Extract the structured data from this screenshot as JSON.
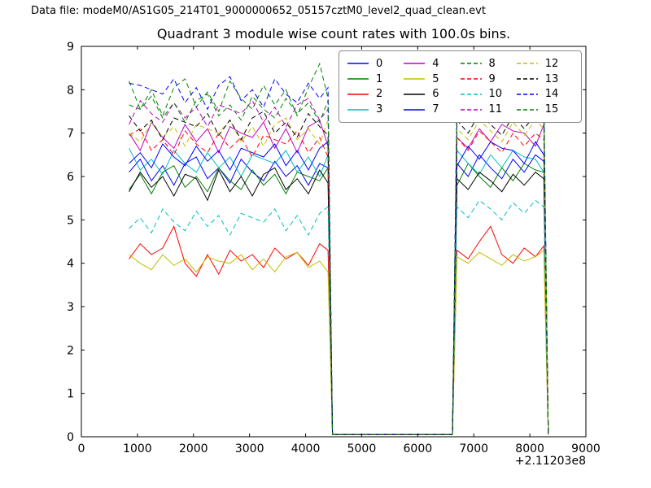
{
  "header": {
    "data_file_label": "Data file: modeM0/AS1G05_214T01_9000000652_05157cztM0_level2_quad_clean.evt"
  },
  "chart_data": {
    "type": "line",
    "title": "Quadrant 3 module wise count rates with 100.0s bins.",
    "xlabel": "",
    "ylabel": "",
    "xlim": [
      0,
      9000
    ],
    "ylim": [
      0,
      9
    ],
    "x_ticks": [
      0,
      1000,
      2000,
      3000,
      4000,
      5000,
      6000,
      7000,
      8000,
      9000
    ],
    "y_ticks": [
      0,
      1,
      2,
      3,
      4,
      5,
      6,
      7,
      8,
      9
    ],
    "x_offset_label": "+2.11203e8",
    "grid": false,
    "legend_position": "upper center-right, 4 columns",
    "x": [
      850,
      1050,
      1250,
      1450,
      1650,
      1850,
      2050,
      2250,
      2450,
      2650,
      2850,
      3050,
      3250,
      3450,
      3650,
      3850,
      4050,
      4250,
      4400,
      4480,
      6620,
      6700,
      6900,
      7100,
      7300,
      7500,
      7700,
      7900,
      8100,
      8250,
      8330
    ],
    "series": [
      {
        "name": "0",
        "color": "#0000ff",
        "dash": false,
        "values": [
          6.1,
          6.4,
          5.9,
          6.25,
          5.8,
          6.3,
          6.45,
          5.95,
          6.2,
          5.85,
          6.4,
          6.1,
          5.9,
          6.35,
          6.0,
          6.25,
          5.8,
          6.3,
          6.2,
          0.05,
          0.05,
          6.3,
          6.0,
          6.5,
          6.2,
          5.95,
          6.4,
          6.1,
          6.5,
          6.35,
          0.05
        ]
      },
      {
        "name": "1",
        "color": "#008000",
        "dash": false,
        "values": [
          5.7,
          6.05,
          5.6,
          6.1,
          6.25,
          5.75,
          6.0,
          5.65,
          6.2,
          5.9,
          5.7,
          6.15,
          5.8,
          6.05,
          5.6,
          6.1,
          6.0,
          5.9,
          6.2,
          0.05,
          0.05,
          5.8,
          6.3,
          6.0,
          5.75,
          6.2,
          5.9,
          6.3,
          6.15,
          6.1,
          0.05
        ]
      },
      {
        "name": "2",
        "color": "#ff0000",
        "dash": false,
        "values": [
          4.1,
          4.45,
          4.2,
          4.35,
          4.85,
          4.0,
          3.7,
          4.2,
          3.75,
          4.3,
          4.05,
          4.2,
          3.9,
          4.35,
          4.1,
          4.25,
          3.95,
          4.45,
          4.3,
          0.05,
          0.05,
          4.3,
          4.1,
          4.5,
          4.85,
          4.2,
          4.0,
          4.35,
          4.15,
          4.4,
          0.05
        ]
      },
      {
        "name": "3",
        "color": "#00bfbf",
        "dash": false,
        "values": [
          6.65,
          6.15,
          6.4,
          6.05,
          6.6,
          6.3,
          6.1,
          6.55,
          6.2,
          6.45,
          6.0,
          6.5,
          6.4,
          6.3,
          6.6,
          6.1,
          6.45,
          6.0,
          6.5,
          0.05,
          0.05,
          6.6,
          6.3,
          6.05,
          6.5,
          6.2,
          6.6,
          6.45,
          6.4,
          6.1,
          0.05
        ]
      },
      {
        "name": "4",
        "color": "#bf00bf",
        "dash": false,
        "values": [
          7.0,
          6.6,
          7.25,
          6.9,
          6.65,
          7.2,
          6.8,
          7.1,
          6.55,
          7.15,
          7.0,
          6.9,
          7.25,
          6.65,
          7.1,
          6.55,
          7.15,
          7.3,
          6.7,
          0.05,
          0.05,
          6.9,
          6.65,
          7.1,
          6.8,
          7.2,
          7.05,
          7.0,
          6.7,
          7.2,
          0.05
        ]
      },
      {
        "name": "5",
        "color": "#bfbf00",
        "dash": false,
        "values": [
          4.2,
          4.0,
          3.85,
          4.2,
          3.95,
          4.1,
          3.8,
          4.15,
          4.05,
          4.0,
          4.2,
          3.85,
          4.1,
          3.8,
          4.15,
          4.25,
          3.9,
          4.05,
          3.8,
          0.05,
          0.05,
          4.15,
          4.0,
          4.25,
          4.1,
          3.95,
          4.2,
          4.05,
          4.15,
          4.3,
          0.05
        ]
      },
      {
        "name": "6",
        "color": "#000000",
        "dash": false,
        "values": [
          5.65,
          6.1,
          5.75,
          6.0,
          5.55,
          6.05,
          5.95,
          5.45,
          6.15,
          5.65,
          6.0,
          5.55,
          6.05,
          6.2,
          5.7,
          5.95,
          5.6,
          6.15,
          5.85,
          0.05,
          0.05,
          5.95,
          5.7,
          6.1,
          5.9,
          5.65,
          6.05,
          5.8,
          6.1,
          5.95,
          0.05
        ]
      },
      {
        "name": "7",
        "color": "#0000ff",
        "dash": false,
        "values": [
          6.3,
          6.55,
          6.2,
          6.75,
          6.45,
          6.25,
          6.7,
          6.35,
          6.6,
          6.15,
          6.65,
          6.55,
          6.45,
          6.75,
          6.25,
          6.6,
          6.15,
          6.65,
          6.8,
          0.05,
          0.05,
          6.25,
          6.7,
          6.4,
          6.8,
          6.65,
          6.6,
          6.3,
          6.8,
          6.5,
          0.05
        ]
      },
      {
        "name": "8",
        "color": "#008000",
        "dash": true,
        "values": [
          8.2,
          7.55,
          8.0,
          7.4,
          8.05,
          8.25,
          7.6,
          7.95,
          7.5,
          8.2,
          7.8,
          7.55,
          8.1,
          7.65,
          8.0,
          7.4,
          8.05,
          8.6,
          7.8,
          0.05,
          0.05,
          7.8,
          7.5,
          8.1,
          7.7,
          7.45,
          8.0,
          7.6,
          8.1,
          7.75,
          0.05
        ]
      },
      {
        "name": "9",
        "color": "#ff0000",
        "dash": true,
        "values": [
          6.95,
          7.1,
          6.6,
          6.85,
          6.5,
          7.05,
          6.75,
          6.55,
          7.0,
          6.65,
          6.9,
          6.45,
          6.95,
          6.85,
          6.75,
          7.05,
          6.55,
          6.9,
          6.45,
          0.05,
          0.05,
          6.9,
          6.6,
          7.05,
          6.8,
          6.55,
          7.0,
          6.7,
          7.0,
          6.85,
          0.05
        ]
      },
      {
        "name": "10",
        "color": "#00bfbf",
        "dash": true,
        "values": [
          4.8,
          5.05,
          4.7,
          5.25,
          4.95,
          4.75,
          5.2,
          4.85,
          5.1,
          4.65,
          5.15,
          5.05,
          4.95,
          5.25,
          4.75,
          5.1,
          4.65,
          5.15,
          5.3,
          0.05,
          0.05,
          5.3,
          5.05,
          5.45,
          5.25,
          5.0,
          5.4,
          5.15,
          5.45,
          5.3,
          0.05
        ]
      },
      {
        "name": "11",
        "color": "#bf00bf",
        "dash": true,
        "values": [
          7.2,
          7.75,
          7.45,
          7.25,
          7.7,
          7.35,
          7.6,
          7.15,
          7.65,
          7.55,
          7.45,
          7.75,
          7.25,
          7.6,
          7.15,
          7.65,
          7.8,
          7.3,
          7.55,
          0.05,
          0.05,
          7.6,
          7.3,
          7.75,
          7.5,
          7.25,
          7.7,
          7.4,
          7.75,
          7.55,
          0.05
        ]
      },
      {
        "name": "12",
        "color": "#bfbf00",
        "dash": true,
        "values": [
          7.0,
          6.8,
          7.25,
          6.9,
          7.15,
          6.7,
          7.2,
          7.1,
          7.0,
          7.3,
          6.8,
          7.15,
          6.7,
          7.2,
          7.35,
          6.85,
          7.1,
          6.75,
          7.3,
          0.05,
          0.05,
          7.1,
          6.85,
          7.3,
          7.05,
          6.8,
          7.25,
          6.95,
          7.3,
          7.1,
          0.05
        ]
      },
      {
        "name": "13",
        "color": "#000000",
        "dash": true,
        "values": [
          7.4,
          7.05,
          7.3,
          6.85,
          7.35,
          7.25,
          7.15,
          7.45,
          6.95,
          7.3,
          6.85,
          7.35,
          7.5,
          7.0,
          7.25,
          6.9,
          7.45,
          7.15,
          6.95,
          0.05,
          0.05,
          7.3,
          7.0,
          7.45,
          7.2,
          6.95,
          7.4,
          7.1,
          7.45,
          7.25,
          0.05
        ]
      },
      {
        "name": "14",
        "color": "#0000ff",
        "dash": true,
        "values": [
          8.15,
          8.1,
          8.0,
          7.9,
          8.25,
          7.7,
          8.05,
          7.55,
          8.1,
          8.3,
          7.75,
          8.0,
          7.6,
          8.25,
          7.9,
          7.7,
          8.15,
          7.8,
          8.05,
          0.05,
          0.05,
          7.9,
          7.6,
          8.05,
          7.8,
          7.55,
          8.0,
          7.7,
          8.05,
          7.85,
          0.05
        ]
      },
      {
        "name": "15",
        "color": "#008000",
        "dash": true,
        "values": [
          7.65,
          7.55,
          7.85,
          7.35,
          7.7,
          7.25,
          7.75,
          7.9,
          7.4,
          7.65,
          7.3,
          7.85,
          7.55,
          7.35,
          7.8,
          7.45,
          7.7,
          7.25,
          7.75,
          0.05,
          0.05,
          7.7,
          7.4,
          7.85,
          7.6,
          7.35,
          7.8,
          7.5,
          7.85,
          7.65,
          0.05
        ]
      }
    ]
  },
  "colors": {
    "background": "#ffffff",
    "axes": "#000000",
    "legend_border": "#8a8a8a"
  }
}
